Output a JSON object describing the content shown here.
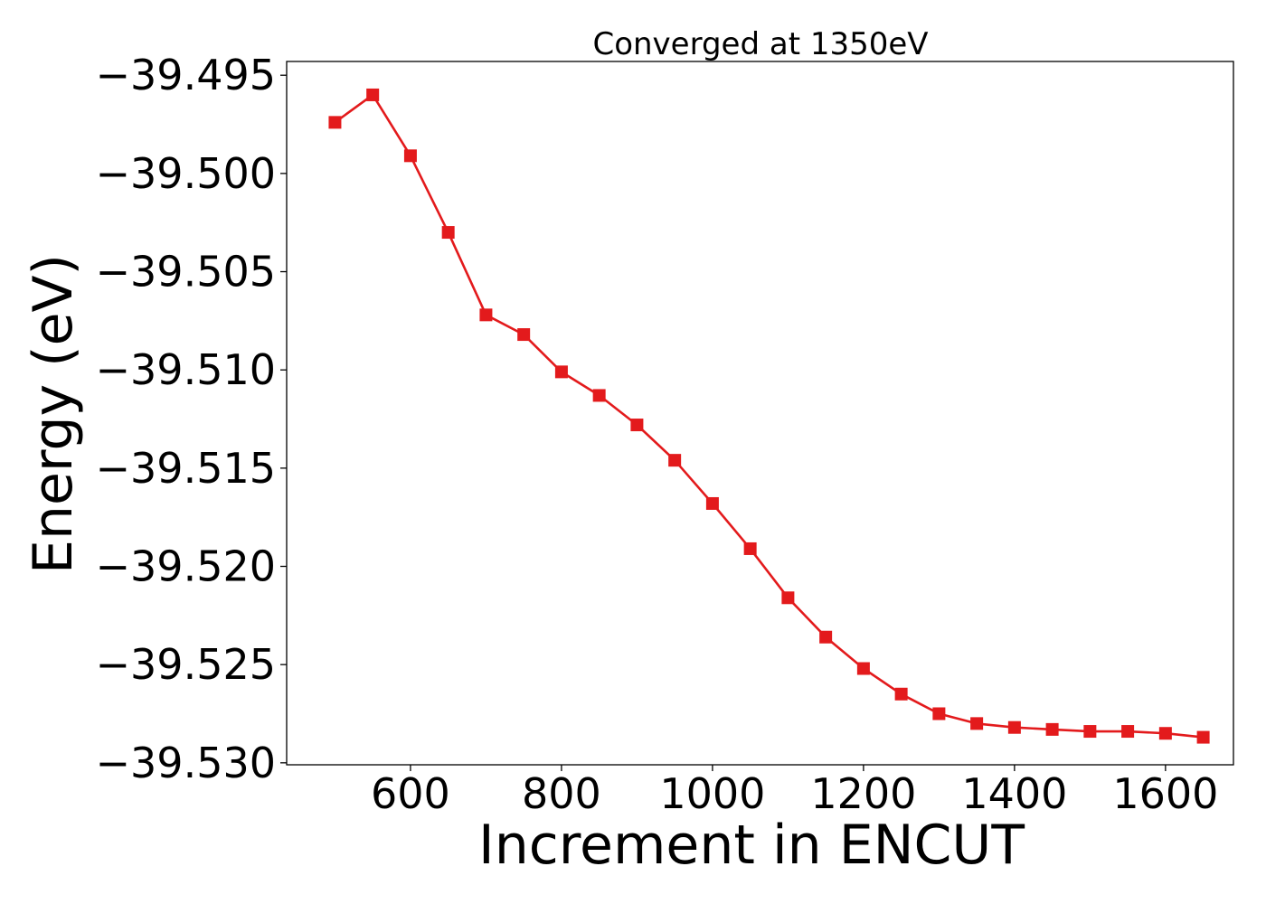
{
  "chart_data": {
    "type": "line",
    "title": "Converged at 1350eV",
    "xlabel": "Increment in ENCUT",
    "ylabel": "Energy (eV)",
    "xlim": [
      436,
      1690
    ],
    "ylim": [
      -39.5301,
      -39.4943
    ],
    "x_ticks": [
      600,
      800,
      1000,
      1200,
      1400,
      1600
    ],
    "x_tick_labels": [
      "600",
      "800",
      "1000",
      "1200",
      "1400",
      "1600"
    ],
    "y_ticks": [
      -39.495,
      -39.5,
      -39.505,
      -39.51,
      -39.515,
      -39.52,
      -39.525,
      -39.53
    ],
    "y_tick_labels": [
      "−39.495",
      "−39.500",
      "−39.505",
      "−39.510",
      "−39.515",
      "−39.520",
      "−39.525",
      "−39.530"
    ],
    "grid": false,
    "series": [
      {
        "color": "#e31a1c",
        "marker": "square",
        "x": [
          500,
          550,
          600,
          650,
          700,
          750,
          800,
          850,
          900,
          950,
          1000,
          1050,
          1100,
          1150,
          1200,
          1250,
          1300,
          1350,
          1400,
          1450,
          1500,
          1550,
          1600,
          1650
        ],
        "y": [
          -39.4974,
          -39.496,
          -39.4991,
          -39.503,
          -39.5072,
          -39.5082,
          -39.5101,
          -39.5113,
          -39.5128,
          -39.5146,
          -39.5168,
          -39.5191,
          -39.5216,
          -39.5236,
          -39.5252,
          -39.5265,
          -39.5275,
          -39.528,
          -39.5282,
          -39.5283,
          -39.5284,
          -39.5284,
          -39.5285,
          -39.5287
        ]
      }
    ]
  }
}
